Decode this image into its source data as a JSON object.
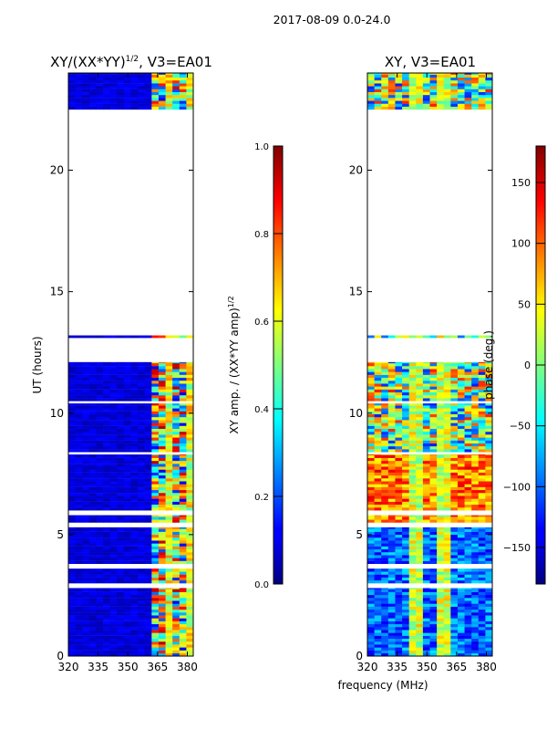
{
  "suptitle": "2017-08-09 0.0-24.0",
  "xlabel": "frequency (MHz)",
  "ylabel": "UT (hours)",
  "chart_data": [
    {
      "type": "heatmap",
      "title": "XY/(XX*YY)^(1/2), V3=EA01",
      "title_main": "XY/(XX*YY)",
      "title_sup": "1/2",
      "title_tail": ", V3=EA01",
      "x_ticks": [
        "320",
        "335",
        "350",
        "365",
        "380"
      ],
      "x_tick_values": [
        320,
        335,
        350,
        365,
        380
      ],
      "xlim": [
        320,
        383
      ],
      "y_ticks": [
        "0",
        "5",
        "10",
        "15",
        "20"
      ],
      "y_tick_values": [
        0,
        5,
        10,
        15,
        20
      ],
      "ylim": [
        0,
        24
      ],
      "colorbar": {
        "label": "XY amp. / (XX*YY amp)^(1/2)",
        "label_main": "XY amp. / (XX*YY amp)",
        "label_sup": "1/2",
        "range": [
          0.0,
          1.0
        ],
        "ticks": [
          "0.0",
          "0.2",
          "0.4",
          "0.6",
          "0.8",
          "1.0"
        ],
        "tick_values": [
          0.0,
          0.2,
          0.4,
          0.6,
          0.8,
          1.0
        ]
      },
      "data_ut_ranges": [
        [
          0.0,
          2.8
        ],
        [
          3.0,
          3.6
        ],
        [
          3.8,
          5.3
        ],
        [
          5.5,
          5.8
        ],
        [
          6.0,
          8.3
        ],
        [
          8.4,
          10.4
        ],
        [
          10.5,
          12.1
        ],
        [
          13.1,
          13.2
        ],
        [
          22.5,
          24.0
        ]
      ]
    },
    {
      "type": "heatmap",
      "title": "XY, V3=EA01",
      "x_ticks": [
        "320",
        "335",
        "350",
        "365",
        "380"
      ],
      "x_tick_values": [
        320,
        335,
        350,
        365,
        380
      ],
      "xlim": [
        320,
        383
      ],
      "y_ticks": [
        "0",
        "5",
        "10",
        "15",
        "20"
      ],
      "y_tick_values": [
        0,
        5,
        10,
        15,
        20
      ],
      "ylim": [
        0,
        24
      ],
      "colorbar": {
        "label": "phase (deg.)",
        "range": [
          -180,
          180
        ],
        "ticks": [
          "−150",
          "−100",
          "−50",
          "0",
          "50",
          "100",
          "150"
        ],
        "tick_values": [
          -150,
          -100,
          -50,
          0,
          50,
          100,
          150
        ]
      },
      "data_ut_ranges": [
        [
          0.0,
          2.8
        ],
        [
          3.0,
          3.6
        ],
        [
          3.8,
          5.3
        ],
        [
          5.5,
          5.8
        ],
        [
          6.0,
          8.3
        ],
        [
          8.4,
          10.4
        ],
        [
          10.5,
          12.1
        ],
        [
          13.1,
          13.2
        ],
        [
          22.5,
          24.0
        ]
      ]
    }
  ]
}
